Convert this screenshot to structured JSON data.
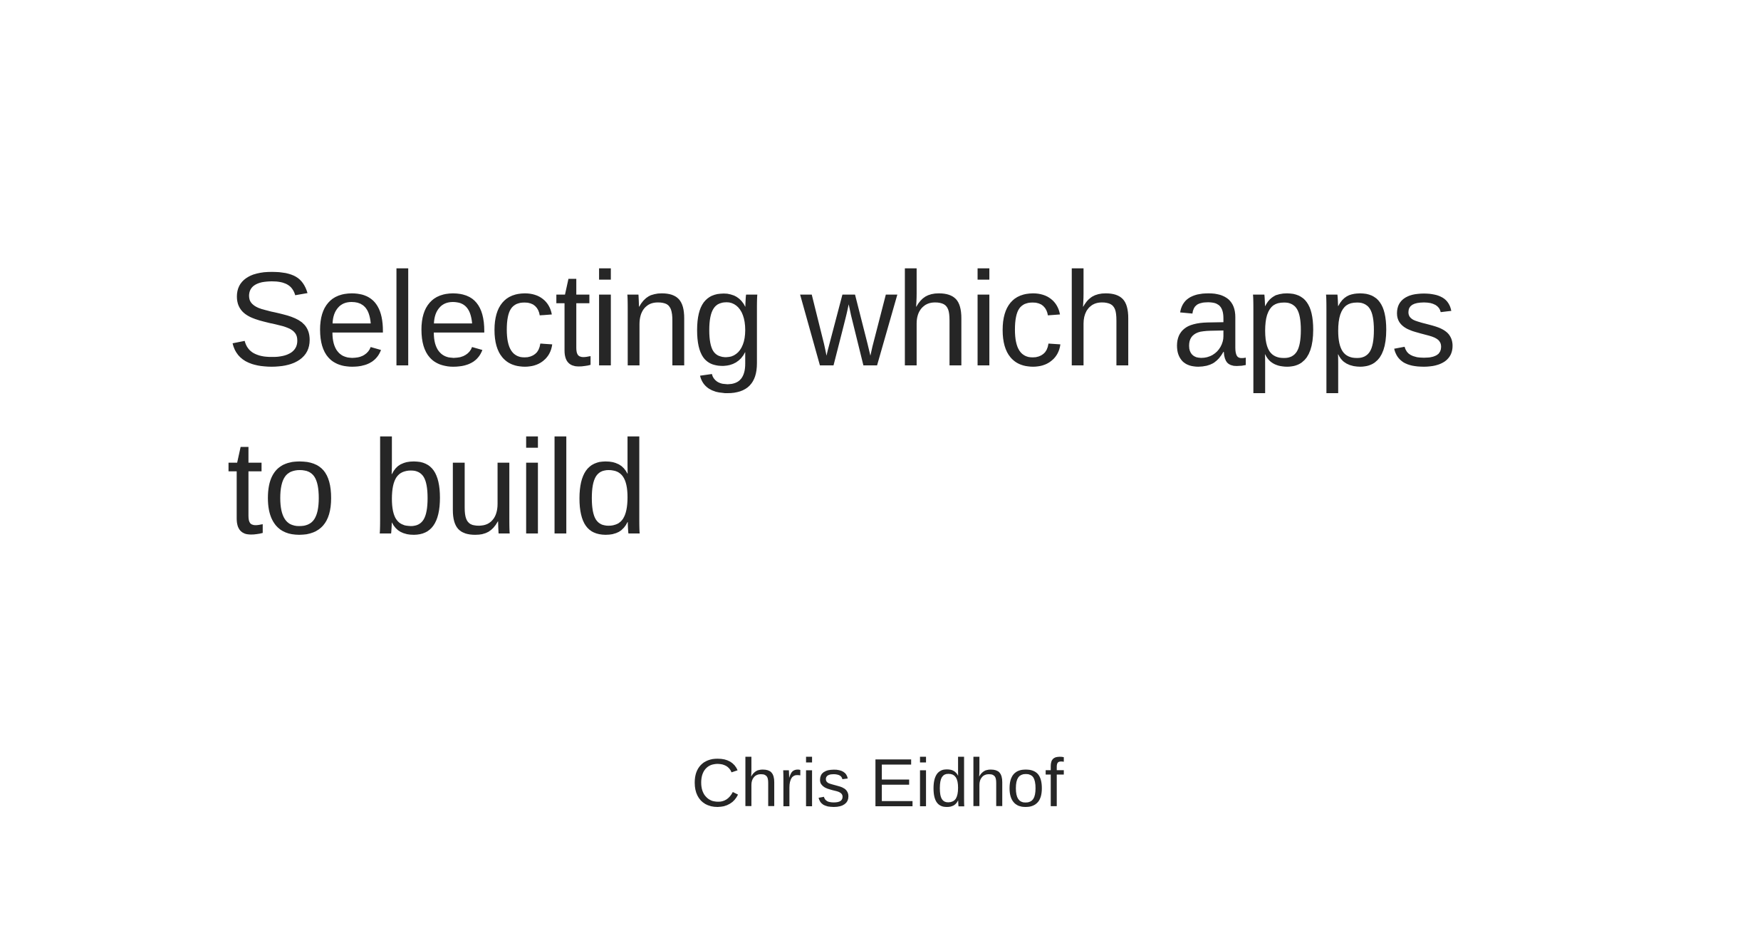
{
  "slide": {
    "title_lines": [
      "Selecting which apps",
      "to build"
    ],
    "author": "Chris Eidhof"
  },
  "colors": {
    "background": "#ffffff",
    "text": "#262626"
  }
}
